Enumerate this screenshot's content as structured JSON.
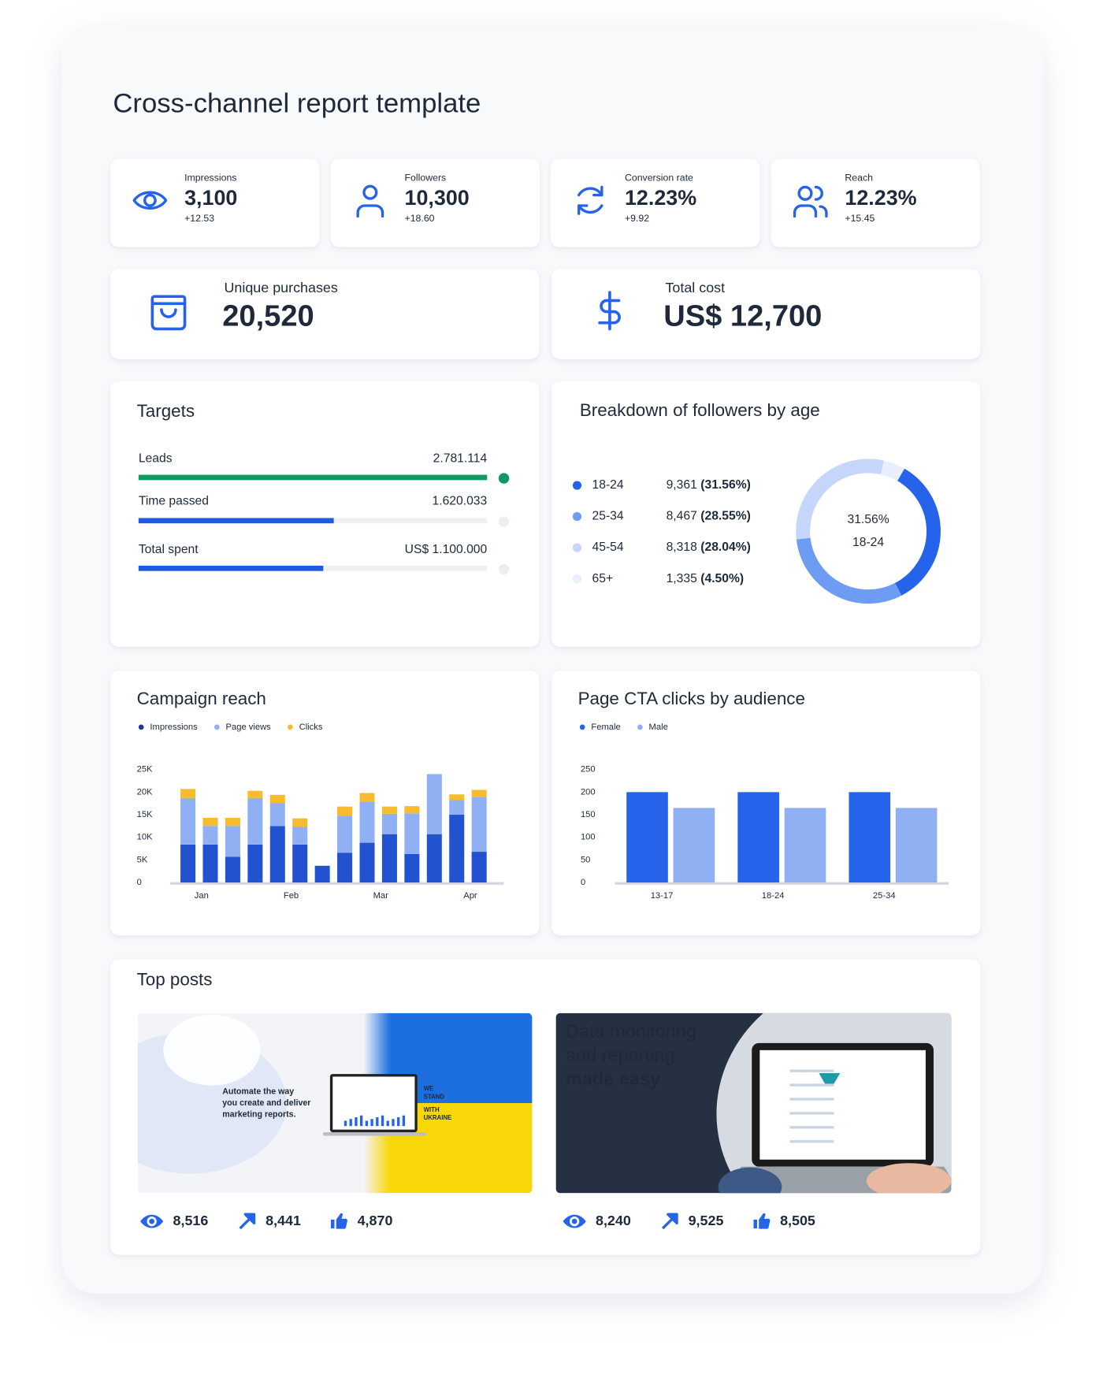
{
  "title": "Cross-channel report template",
  "kpis": [
    {
      "label": "Impressions",
      "value": "3,100",
      "change": "+12.53"
    },
    {
      "label": "Followers",
      "value": "10,300",
      "change": "+18.60"
    },
    {
      "label": "Conversion rate",
      "value": "12.23%",
      "change": "+9.92"
    },
    {
      "label": "Reach",
      "value": "12.23%",
      "change": "+15.45"
    }
  ],
  "summary": [
    {
      "label": "Unique purchases",
      "value": "20,520"
    },
    {
      "label": "Total cost",
      "value": "US$ 12,700"
    }
  ],
  "targets": {
    "title": "Targets",
    "items": [
      {
        "label": "Leads",
        "value": "2.781.114",
        "progress": 100,
        "color": "#0f9960"
      },
      {
        "label": "Time passed",
        "value": "1.620.033",
        "progress": 56,
        "color": "#1f5be0"
      },
      {
        "label": "Total spent",
        "value": "US$ 1.100.000",
        "progress": 53,
        "color": "#1f5be0"
      }
    ]
  },
  "chart_data": [
    {
      "type": "donut",
      "title": "Breakdown of followers by age",
      "categories": [
        "18-24",
        "25-34",
        "45-54",
        "65+"
      ],
      "values": [
        9361,
        8467,
        8318,
        1335
      ],
      "value_labels": [
        "9,361",
        "8,467",
        "8,318",
        "1,335"
      ],
      "percent_labels": [
        "(31.56%)",
        "(28.55%)",
        "(28.04%)",
        "(4.50%)"
      ],
      "center_value": "31.56%",
      "colors": [
        "#2563eb",
        "#6f9cf3",
        "#c6d6fb",
        "#e7eefd"
      ]
    },
    {
      "type": "bar",
      "stacked": true,
      "title": "Campaign reach",
      "categories": [
        null,
        "Jan",
        null,
        null,
        null,
        "Feb",
        null,
        null,
        null,
        "Mar",
        null,
        null,
        null,
        "Apr"
      ],
      "series": [
        {
          "name": "Impressions",
          "color": "#2352d0",
          "values": [
            8400,
            8400,
            5700,
            8400,
            12500,
            8400,
            3700,
            6600,
            8800,
            10700,
            6300,
            10700,
            15000,
            6800
          ]
        },
        {
          "name": "Page views",
          "color": "#8fb1f4",
          "values": [
            10300,
            4100,
            6800,
            10300,
            5100,
            3900,
            0,
            8200,
            9000,
            4500,
            9000,
            13300,
            3300,
            12100
          ]
        },
        {
          "name": "Clicks",
          "color": "#f6bb2f",
          "values": [
            2000,
            1800,
            1800,
            1600,
            1800,
            1900,
            0,
            2000,
            2000,
            1600,
            1600,
            0,
            1200,
            1600
          ]
        }
      ],
      "ylim": [
        0,
        25000
      ],
      "yticks": [
        0,
        {
          "value": 5000,
          "label": "5K"
        },
        {
          "value": 10000,
          "label": "10K"
        },
        {
          "value": 15000,
          "label": "15K"
        },
        {
          "value": 20000,
          "label": "20K"
        },
        {
          "value": 25000,
          "label": "25K"
        }
      ]
    },
    {
      "type": "bar",
      "title": "Page CTA clicks by audience",
      "categories": [
        "13-17",
        "18-24",
        "25-34"
      ],
      "series": [
        {
          "name": "Female",
          "color": "#2563eb",
          "values": [
            200,
            200,
            200
          ]
        },
        {
          "name": "Male",
          "color": "#8fb1f4",
          "values": [
            165,
            165,
            165
          ]
        }
      ],
      "ylim": [
        0,
        250
      ],
      "yticks": [
        0,
        50,
        100,
        150,
        200,
        250
      ]
    }
  ],
  "top_posts": {
    "title": "Top posts",
    "posts": [
      {
        "headline": [
          "Automate the way",
          "you create and deliver",
          "marketing  reports."
        ],
        "banner": [
          "WE",
          "STAND",
          "WITH",
          "UKRAINE"
        ],
        "views": "8,516",
        "shares": "8,441",
        "likes": "4,870"
      },
      {
        "headline": [
          "Data monitoring",
          "and reporting",
          "made easy"
        ],
        "views": "8,240",
        "shares": "9,525",
        "likes": "8,505"
      }
    ]
  }
}
